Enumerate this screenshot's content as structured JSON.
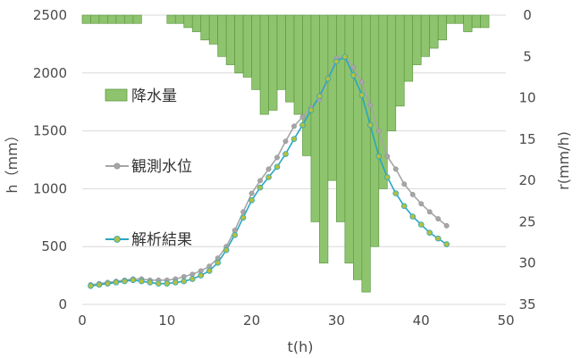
{
  "chart_data": {
    "type": "bar-line-combo",
    "grid": "horizontal",
    "legend_position": "left-inside",
    "x_axis": {
      "label": "t(h)",
      "range": [
        0,
        50
      ],
      "ticks": [
        0,
        10,
        20,
        30,
        40,
        50
      ],
      "tick_labels": [
        "0",
        "10",
        "20",
        "30",
        "40",
        "50"
      ]
    },
    "y_axis_left": {
      "label": "h（mm）",
      "range": [
        0,
        2500
      ],
      "ticks": [
        0,
        500,
        1000,
        1500,
        2000,
        2500
      ],
      "tick_labels": [
        "0",
        "500",
        "1000",
        "1500",
        "2000",
        "2500"
      ]
    },
    "y_axis_right": {
      "label": "r(mm/h)",
      "range": [
        0,
        35
      ],
      "inverted": true,
      "ticks": [
        0,
        5,
        10,
        15,
        20,
        25,
        30,
        35
      ],
      "tick_labels": [
        "0",
        "5",
        "10",
        "15",
        "20",
        "25",
        "30",
        "35"
      ]
    },
    "series": [
      {
        "name": "降水量",
        "kind": "bar",
        "axis": "right",
        "color": "#8fc46e",
        "x": [
          0,
          1,
          2,
          3,
          4,
          5,
          6,
          7,
          8,
          9,
          10,
          11,
          12,
          13,
          14,
          15,
          16,
          17,
          18,
          19,
          20,
          21,
          22,
          23,
          24,
          25,
          26,
          27,
          28,
          29,
          30,
          31,
          32,
          33,
          34,
          35,
          36,
          37,
          38,
          39,
          40,
          41,
          42,
          43,
          44,
          45,
          46,
          47
        ],
        "values": [
          1,
          1,
          1,
          1,
          1,
          1,
          1,
          0,
          0,
          0,
          1,
          1,
          1.5,
          2,
          3,
          3.5,
          5,
          6,
          7,
          7.5,
          9,
          12,
          11.5,
          9,
          10.5,
          12,
          17,
          25,
          30,
          20,
          25,
          30,
          32,
          33.5,
          28,
          21,
          14,
          11,
          8,
          6,
          5,
          4,
          3,
          1,
          1,
          2,
          1.5,
          1.5
        ]
      },
      {
        "name": "観測水位",
        "kind": "line",
        "axis": "left",
        "color": "#a6a6a6",
        "x": [
          1,
          2,
          3,
          4,
          5,
          6,
          7,
          8,
          9,
          10,
          11,
          12,
          13,
          14,
          15,
          16,
          17,
          18,
          19,
          20,
          21,
          22,
          23,
          24,
          25,
          26,
          27,
          28,
          29,
          30,
          31,
          32,
          33,
          34,
          35,
          36,
          37,
          38,
          39,
          40,
          41,
          42,
          43
        ],
        "values": [
          170,
          180,
          190,
          200,
          210,
          220,
          220,
          210,
          210,
          210,
          220,
          240,
          260,
          290,
          330,
          400,
          500,
          640,
          800,
          960,
          1070,
          1170,
          1270,
          1410,
          1540,
          1620,
          1700,
          1770,
          1950,
          2130,
          2140,
          2050,
          1920,
          1720,
          1500,
          1280,
          1170,
          1040,
          950,
          870,
          800,
          740,
          680
        ]
      },
      {
        "name": "解析結果",
        "kind": "line",
        "axis": "left",
        "color": "#2aa6c2",
        "marker_color": "#b5c03d",
        "x": [
          1,
          2,
          3,
          4,
          5,
          6,
          7,
          8,
          9,
          10,
          11,
          12,
          13,
          14,
          15,
          16,
          17,
          18,
          19,
          20,
          21,
          22,
          23,
          24,
          25,
          26,
          27,
          28,
          29,
          30,
          31,
          32,
          33,
          34,
          35,
          36,
          37,
          38,
          39,
          40,
          41,
          42,
          43
        ],
        "values": [
          160,
          170,
          180,
          190,
          200,
          210,
          200,
          190,
          180,
          180,
          190,
          200,
          220,
          250,
          290,
          360,
          470,
          600,
          750,
          900,
          1010,
          1100,
          1190,
          1300,
          1430,
          1550,
          1680,
          1800,
          1950,
          2100,
          2140,
          1980,
          1810,
          1550,
          1280,
          1100,
          960,
          850,
          760,
          690,
          620,
          570,
          520
        ]
      }
    ]
  }
}
